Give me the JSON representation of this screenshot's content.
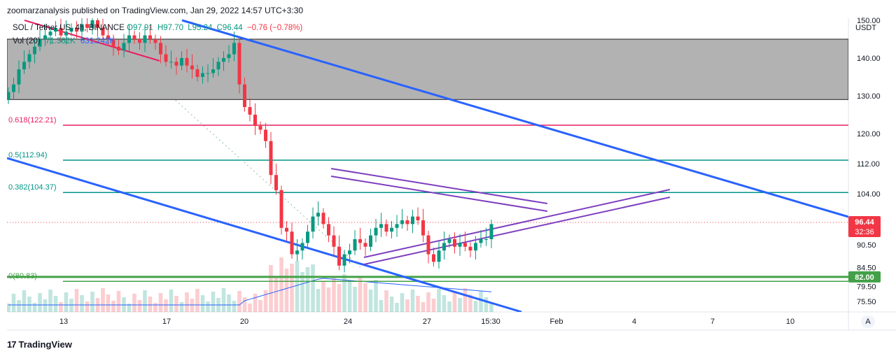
{
  "header": {
    "publisher_line": "zoomarzanalysis published on TradingView.com, Jan 29, 2022 14:57 UTC+3:30"
  },
  "footer": {
    "brand": "TradingView",
    "brand_mark": "17"
  },
  "legend": {
    "symbol": "SOL / Tether US, 4h, BINANCE",
    "open": "O97.91",
    "high": "H97.70",
    "low": "L95.24",
    "close": "C96.44",
    "change": "−0.76 (−0.78%)",
    "volume_label": "Vol (20)",
    "volume_value": "71.362K",
    "volume_ma": "631.242K"
  },
  "price_axis": {
    "currency": "USDT",
    "auto_label": "A",
    "current_price": "96.44",
    "countdown": "32:36",
    "support_label": "82.00"
  },
  "fib_labels": [
    "0.618(122.21)",
    "0.5(112.94)",
    "0.382(104.37)",
    "0(80.83)"
  ],
  "chart_data": {
    "type": "candlestick",
    "y_ticks": [
      150.0,
      140.0,
      130.0,
      120.0,
      112.0,
      104.0,
      90.5,
      84.5,
      79.5,
      75.5
    ],
    "x_ticks": [
      "13",
      "17",
      "20",
      "24",
      "27",
      "15:30",
      "Feb",
      "4",
      "7",
      "10"
    ],
    "price_levels": {
      "fib_0618": 122.21,
      "fib_05": 112.94,
      "fib_0382": 104.37,
      "fib_0": 80.83,
      "support": 82.0,
      "current": 96.44,
      "resistance_zone": [
        129.0,
        145.0
      ]
    },
    "candles_close": [
      131,
      133,
      137,
      139,
      141,
      143,
      145,
      146,
      147,
      148,
      146,
      147,
      148,
      147,
      149,
      148,
      150,
      148,
      146,
      145,
      143,
      142,
      144,
      146,
      145,
      144,
      146,
      145,
      144,
      141,
      139,
      139,
      138,
      140,
      138,
      137,
      135,
      136,
      136,
      137,
      139,
      140,
      141,
      144,
      133,
      127,
      125,
      122,
      121,
      118,
      109,
      105,
      95,
      94,
      88,
      89,
      91,
      94,
      98,
      99,
      96,
      93,
      90,
      85,
      88,
      89,
      92,
      91,
      90,
      93,
      95,
      96,
      94,
      95,
      96,
      97,
      96,
      98,
      97,
      93,
      88,
      86,
      89,
      91,
      92,
      90,
      91,
      90,
      89,
      91,
      92,
      92,
      96
    ]
  },
  "colors": {
    "up": "#089981",
    "down": "#f23645",
    "trend_blue": "#2962ff",
    "triangle_purple": "#7e3fbf",
    "fib_red": "#e91e63",
    "fib_teal": "#009688",
    "support_green": "#43a047",
    "zone_gray": "#b2b2b2"
  }
}
